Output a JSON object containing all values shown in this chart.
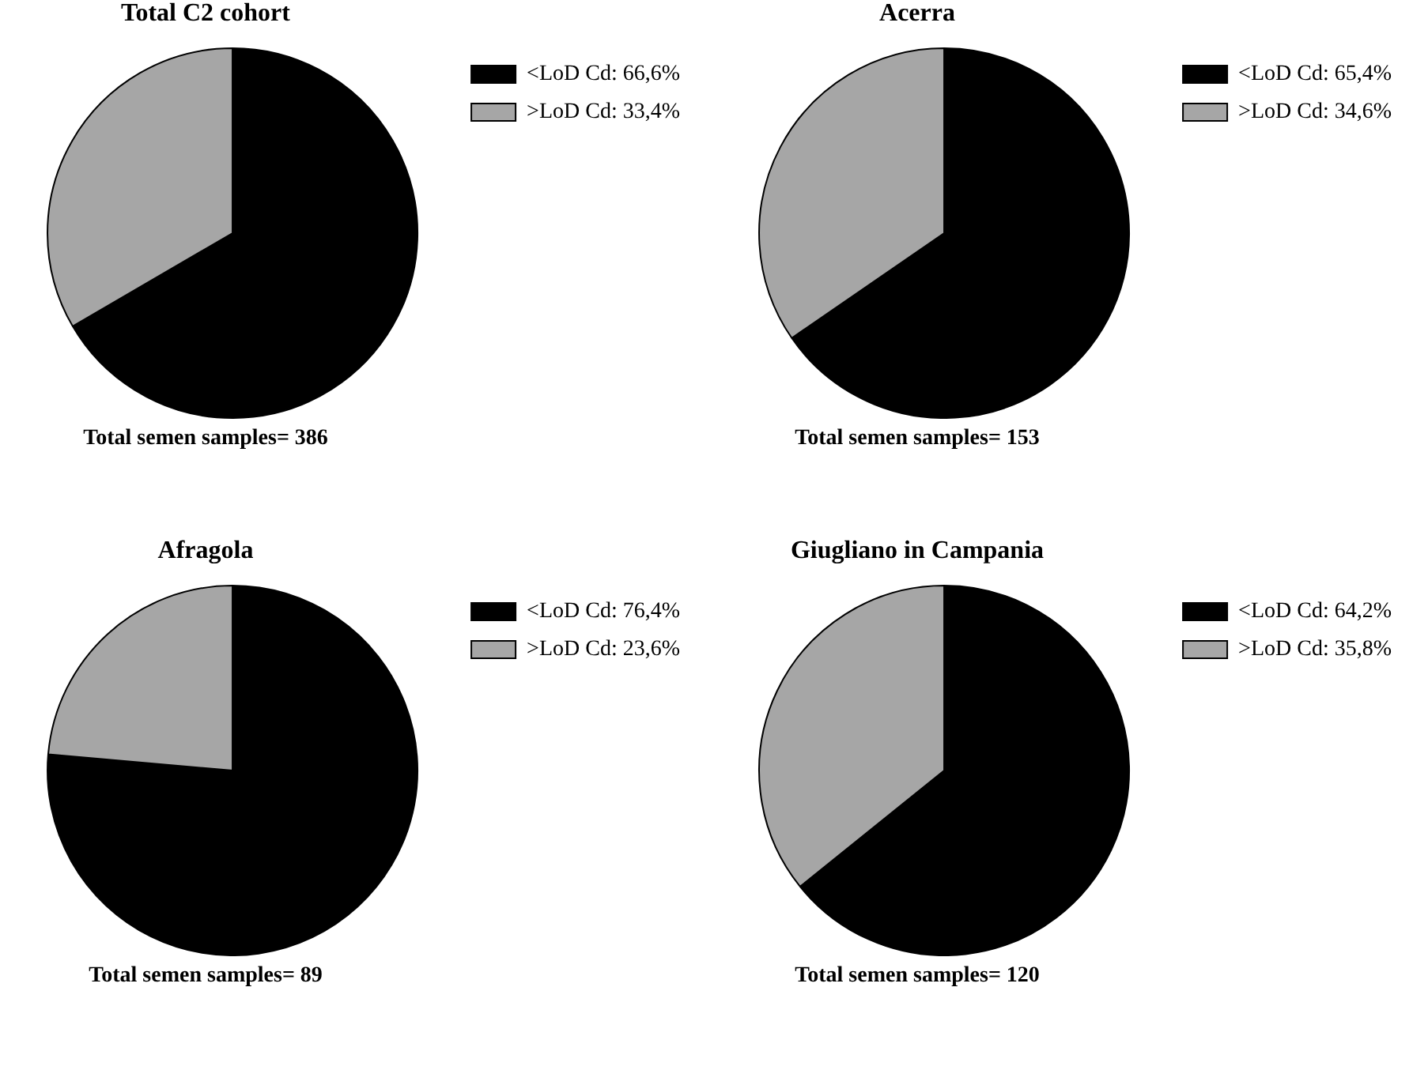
{
  "chart_data": [
    {
      "type": "pie",
      "title": "Total C2 cohort",
      "categories": [
        "<LoD Cd",
        ">LoD Cd"
      ],
      "values": [
        66.6,
        33.4
      ],
      "value_labels": [
        "66,6%",
        "33,4%"
      ],
      "colors": [
        "#000000",
        "#a6a6a6"
      ],
      "legend": "right",
      "annotations": [
        "Total semen samples= 386"
      ]
    },
    {
      "type": "pie",
      "title": "Acerra",
      "categories": [
        "<LoD Cd",
        ">LoD Cd"
      ],
      "values": [
        65.4,
        34.6
      ],
      "value_labels": [
        "65,4%",
        "34,6%"
      ],
      "colors": [
        "#000000",
        "#a6a6a6"
      ],
      "legend": "right",
      "annotations": [
        "Total semen samples= 153"
      ]
    },
    {
      "type": "pie",
      "title": "Afragola",
      "categories": [
        "<LoD Cd",
        ">LoD Cd"
      ],
      "values": [
        76.4,
        23.6
      ],
      "value_labels": [
        "76,4%",
        "23,6%"
      ],
      "colors": [
        "#000000",
        "#a6a6a6"
      ],
      "legend": "right",
      "annotations": [
        "Total semen samples= 89"
      ]
    },
    {
      "type": "pie",
      "title": "Giugliano in Campania",
      "categories": [
        "<LoD Cd",
        ">LoD Cd"
      ],
      "values": [
        64.2,
        35.8
      ],
      "value_labels": [
        "64,2%",
        "35,8%"
      ],
      "colors": [
        "#000000",
        "#a6a6a6"
      ],
      "legend": "right",
      "annotations": [
        "Total semen samples= 120"
      ]
    }
  ]
}
